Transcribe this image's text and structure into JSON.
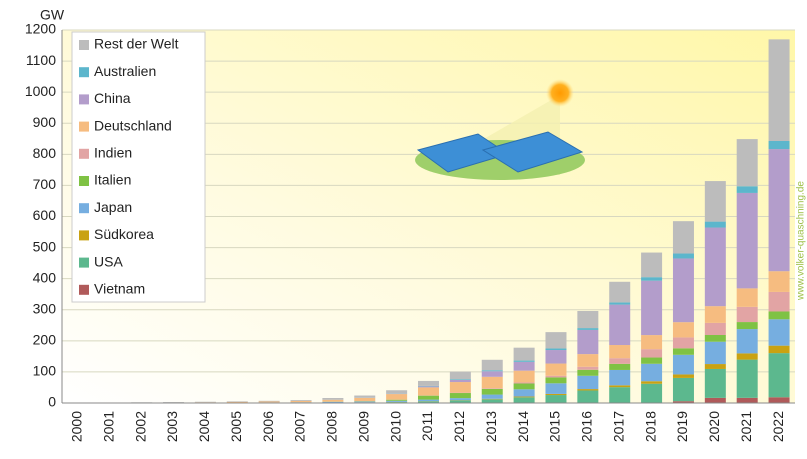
{
  "chart_data": {
    "type": "bar",
    "stacked": true,
    "y_label": "GW",
    "watermark": "www.volker-quaschning.de",
    "categories": [
      "2000",
      "2001",
      "2002",
      "2003",
      "2004",
      "2005",
      "2006",
      "2007",
      "2008",
      "2009",
      "2010",
      "2011",
      "2012",
      "2013",
      "2014",
      "2015",
      "2016",
      "2017",
      "2018",
      "2019",
      "2020",
      "2021",
      "2022"
    ],
    "series": [
      {
        "name": "Vietnam",
        "color": "#b05a5a",
        "values": [
          0,
          0,
          0,
          0,
          0,
          0,
          0,
          0,
          0,
          0,
          0,
          0,
          0,
          0,
          0,
          0,
          0,
          0,
          0.1,
          5.7,
          16.5,
          16.6,
          18.5
        ]
      },
      {
        "name": "USA",
        "color": "#5cb88e",
        "values": [
          0.1,
          0.1,
          0.1,
          0.1,
          0.2,
          0.2,
          0.3,
          0.5,
          1.2,
          1.6,
          2.9,
          5.2,
          8.1,
          12,
          18.3,
          25.6,
          40.3,
          51,
          62,
          75,
          93,
          123,
          142
        ]
      },
      {
        "name": "Südkorea",
        "color": "#c9a212",
        "values": [
          0,
          0,
          0,
          0,
          0,
          0,
          0,
          0,
          0.4,
          0.5,
          0.65,
          0.8,
          1,
          1.5,
          2.5,
          3.6,
          4.5,
          5.8,
          7.9,
          11.2,
          15.8,
          20,
          24
        ]
      },
      {
        "name": "Japan",
        "color": "#76aee0",
        "values": [
          0.3,
          0.45,
          0.64,
          0.86,
          1.13,
          1.42,
          1.71,
          1.92,
          2.14,
          2.63,
          3.6,
          4.9,
          6.6,
          13.6,
          23.3,
          34.2,
          42.8,
          49.5,
          56.2,
          63.2,
          71.9,
          78.2,
          84.9
        ]
      },
      {
        "name": "Italien",
        "color": "#7fc244",
        "values": [
          0,
          0,
          0,
          0,
          0,
          0,
          0,
          0.1,
          0.5,
          1.1,
          3.5,
          12.8,
          16.4,
          18.2,
          18.6,
          18.9,
          19.3,
          19.7,
          20.1,
          20.9,
          21.6,
          22.6,
          25
        ]
      },
      {
        "name": "Indien",
        "color": "#e2a4a4",
        "values": [
          0,
          0,
          0,
          0,
          0,
          0,
          0,
          0,
          0,
          0,
          0.1,
          0.6,
          1.2,
          2.3,
          3.4,
          5.4,
          9.7,
          18.2,
          27,
          35,
          39,
          49,
          63
        ]
      },
      {
        "name": "Deutschland",
        "color": "#f6bc80",
        "values": [
          0.1,
          0.2,
          0.3,
          0.4,
          1.1,
          2.1,
          2.9,
          4.2,
          6.1,
          10.6,
          18,
          25.9,
          34.1,
          36.7,
          37.9,
          39.2,
          40.7,
          42.3,
          45.2,
          49,
          53.7,
          59.4,
          66.5
        ]
      },
      {
        "name": "China",
        "color": "#b39dcb",
        "values": [
          0,
          0,
          0,
          0,
          0,
          0,
          0,
          0,
          0,
          0.3,
          0.8,
          3.3,
          6.7,
          17.8,
          28.4,
          43.5,
          77.8,
          130,
          175,
          205,
          253,
          307,
          393
        ]
      },
      {
        "name": "Australien",
        "color": "#5cb6cc",
        "values": [
          0,
          0,
          0,
          0,
          0,
          0,
          0,
          0,
          0,
          0.2,
          0.6,
          1.4,
          2.4,
          3.2,
          4.1,
          5.1,
          5.9,
          7.2,
          11.3,
          15.9,
          19.1,
          21.6,
          26
        ]
      },
      {
        "name": "Rest der Welt",
        "color": "#bcbcbc",
        "values": [
          0.8,
          0.85,
          1.2,
          1.6,
          1.6,
          1.8,
          2.1,
          2.8,
          5.7,
          7.1,
          10.9,
          16.1,
          24.5,
          33.7,
          41.5,
          52.5,
          55,
          66.3,
          79.2,
          104.1,
          130.4,
          151.6,
          327
        ]
      }
    ],
    "ylim": [
      0,
      1200
    ],
    "yticks": [
      0,
      100,
      200,
      300,
      400,
      500,
      600,
      700,
      800,
      900,
      1000,
      1100,
      1200
    ],
    "grid": true
  }
}
